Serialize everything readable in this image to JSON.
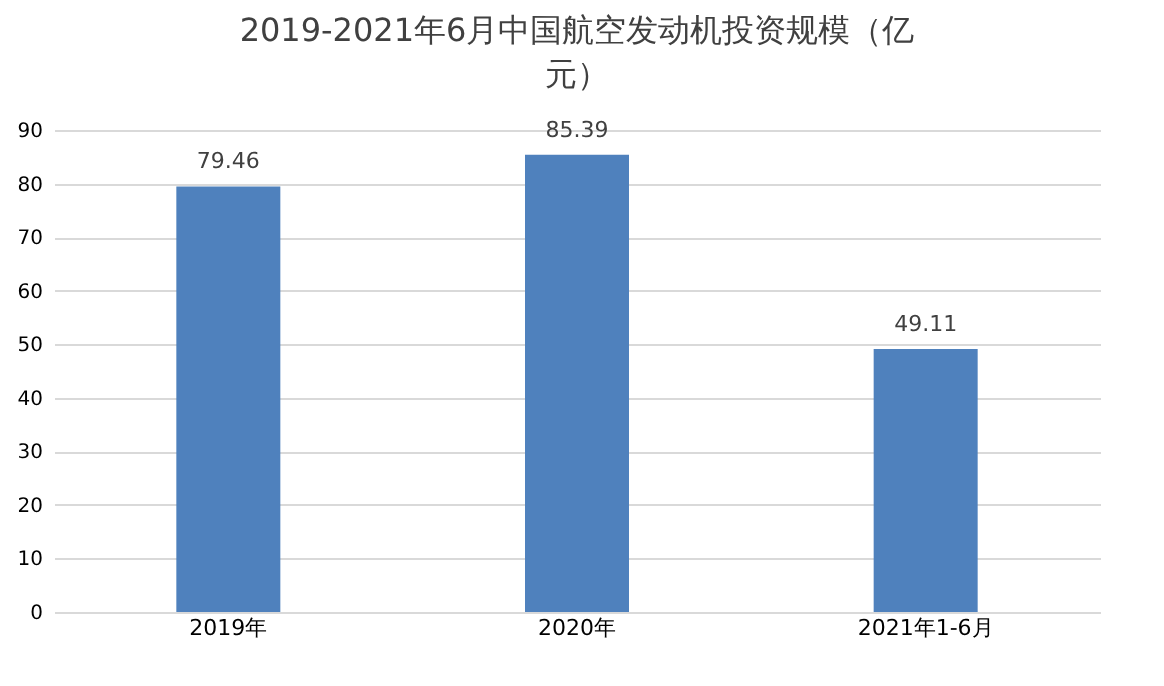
{
  "chart_data": {
    "type": "bar",
    "title": "2019-2021年6月中国航空发动机投资规模（亿元）",
    "categories": [
      "2019年",
      "2020年",
      "2021年1-6月"
    ],
    "values": [
      79.46,
      85.39,
      49.11
    ],
    "color": "#4f81bd",
    "ylim": [
      0,
      90
    ],
    "yticks": [
      0,
      10,
      20,
      30,
      40,
      50,
      60,
      70,
      80,
      90
    ],
    "grid": "y",
    "data_labels": true
  }
}
